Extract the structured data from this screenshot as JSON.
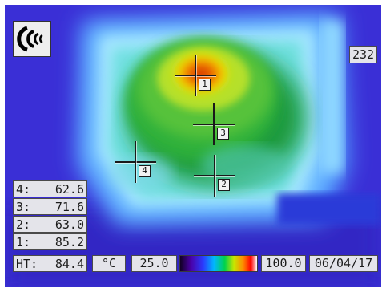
{
  "viewer": {
    "max_temp": "232",
    "unit_symbol": "°C",
    "scale_min": "25.0",
    "scale_max": "100.0",
    "date": "06/04/17",
    "sound_icon": "sound-icon",
    "palette_colors": [
      "#120024",
      "#4a00a8",
      "#2a3cff",
      "#00b7ff",
      "#00d24c",
      "#c8e600",
      "#ff8a00",
      "#ff0000",
      "#ffffff"
    ]
  },
  "spots": [
    {
      "id": "1"
    },
    {
      "id": "2"
    },
    {
      "id": "3"
    },
    {
      "id": "4"
    }
  ],
  "readouts": [
    {
      "label": "4:",
      "value": "62.6"
    },
    {
      "label": "3:",
      "value": "71.6"
    },
    {
      "label": "2:",
      "value": "63.0"
    },
    {
      "label": "1:",
      "value": "85.2"
    },
    {
      "label": "HT:",
      "value": "84.4"
    }
  ]
}
